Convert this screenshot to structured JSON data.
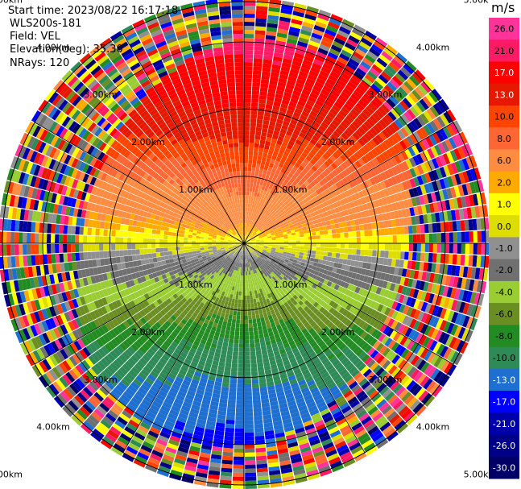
{
  "header": {
    "start_time": "Start time: 2023/08/22 16:17:18",
    "instrument": "WLS200s-181",
    "field": "Field: VEL",
    "elevation": "Elevation(deg): 35.30",
    "nrays": "NRays: 120"
  },
  "chart_data": {
    "type": "heatmap",
    "projection": "polar-ppi",
    "field": "VEL",
    "units": "m/s",
    "nrays": 120,
    "elevation_deg": 35.3,
    "range_max_km": 3.6,
    "range_rings_km": [
      1.0,
      2.0,
      3.0,
      4.0,
      5.0
    ],
    "ring_labels": [
      "1.00km",
      "2.00km",
      "3.00km",
      "4.00km",
      "5.00km"
    ],
    "colorbar": {
      "unit_label": "m/s",
      "tick_labels": [
        "26.0",
        "21.0",
        "17.0",
        "13.0",
        "10.0",
        "8.0",
        "6.0",
        "2.0",
        "1.0",
        "0.0",
        "-1.0",
        "-2.0",
        "-4.0",
        "-6.0",
        "-8.0",
        "-10.0",
        "-13.0",
        "-17.0",
        "-21.0",
        "-26.0",
        "-30.0"
      ],
      "colors": [
        "#ff3399",
        "#ff1a66",
        "#ff0000",
        "#e61900",
        "#ff4400",
        "#ff6633",
        "#ff8c40",
        "#ffaa00",
        "#ffff00",
        "#dddd00",
        "#909090",
        "#707070",
        "#9acd32",
        "#6b8e23",
        "#228b22",
        "#2e8b57",
        "#1e6fcf",
        "#0000ff",
        "#0000aa",
        "#000088",
        "#000066"
      ]
    },
    "wind_pattern": {
      "near_field_direction_deg": 330,
      "positive_side": "north",
      "negative_side": "south",
      "noise_beyond_km": 2.7
    }
  },
  "colors": {
    "grid_line": "#000000",
    "background": "#ffffff"
  }
}
